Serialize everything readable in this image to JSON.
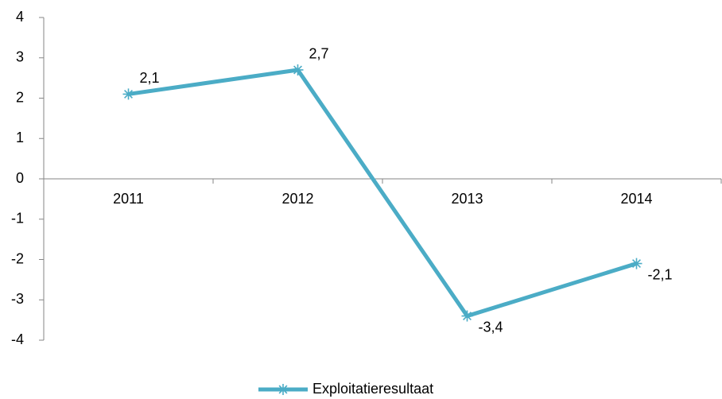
{
  "chart_data": {
    "type": "line",
    "categories": [
      "2011",
      "2012",
      "2013",
      "2014"
    ],
    "series": [
      {
        "name": "Exploitatieresultaat",
        "color": "#4bacc6",
        "values": [
          2.1,
          2.7,
          -3.4,
          -2.1
        ],
        "value_labels": [
          "2,1",
          "2,7",
          "-3,4",
          "-2,1"
        ]
      }
    ],
    "ylim": [
      -4,
      4
    ],
    "yticks": [
      -4,
      -3,
      -2,
      -1,
      0,
      1,
      2,
      3,
      4
    ],
    "legend": "bottom"
  }
}
